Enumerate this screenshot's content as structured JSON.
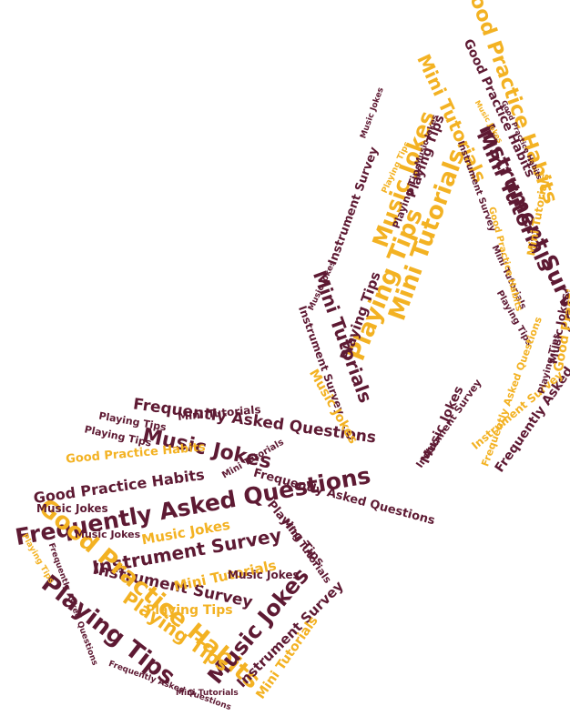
{
  "colors": {
    "primary": "#5e1a33",
    "accent": "#f3b223",
    "background": "#ffffff"
  },
  "phrases": {
    "faq": "Frequently Asked Questions",
    "jokes": "Music Jokes",
    "survey": "Instrument Survey",
    "habits": "Good Practice Habits",
    "tips": "Playing Tips",
    "tutorials": "Mini Tutorials"
  }
}
